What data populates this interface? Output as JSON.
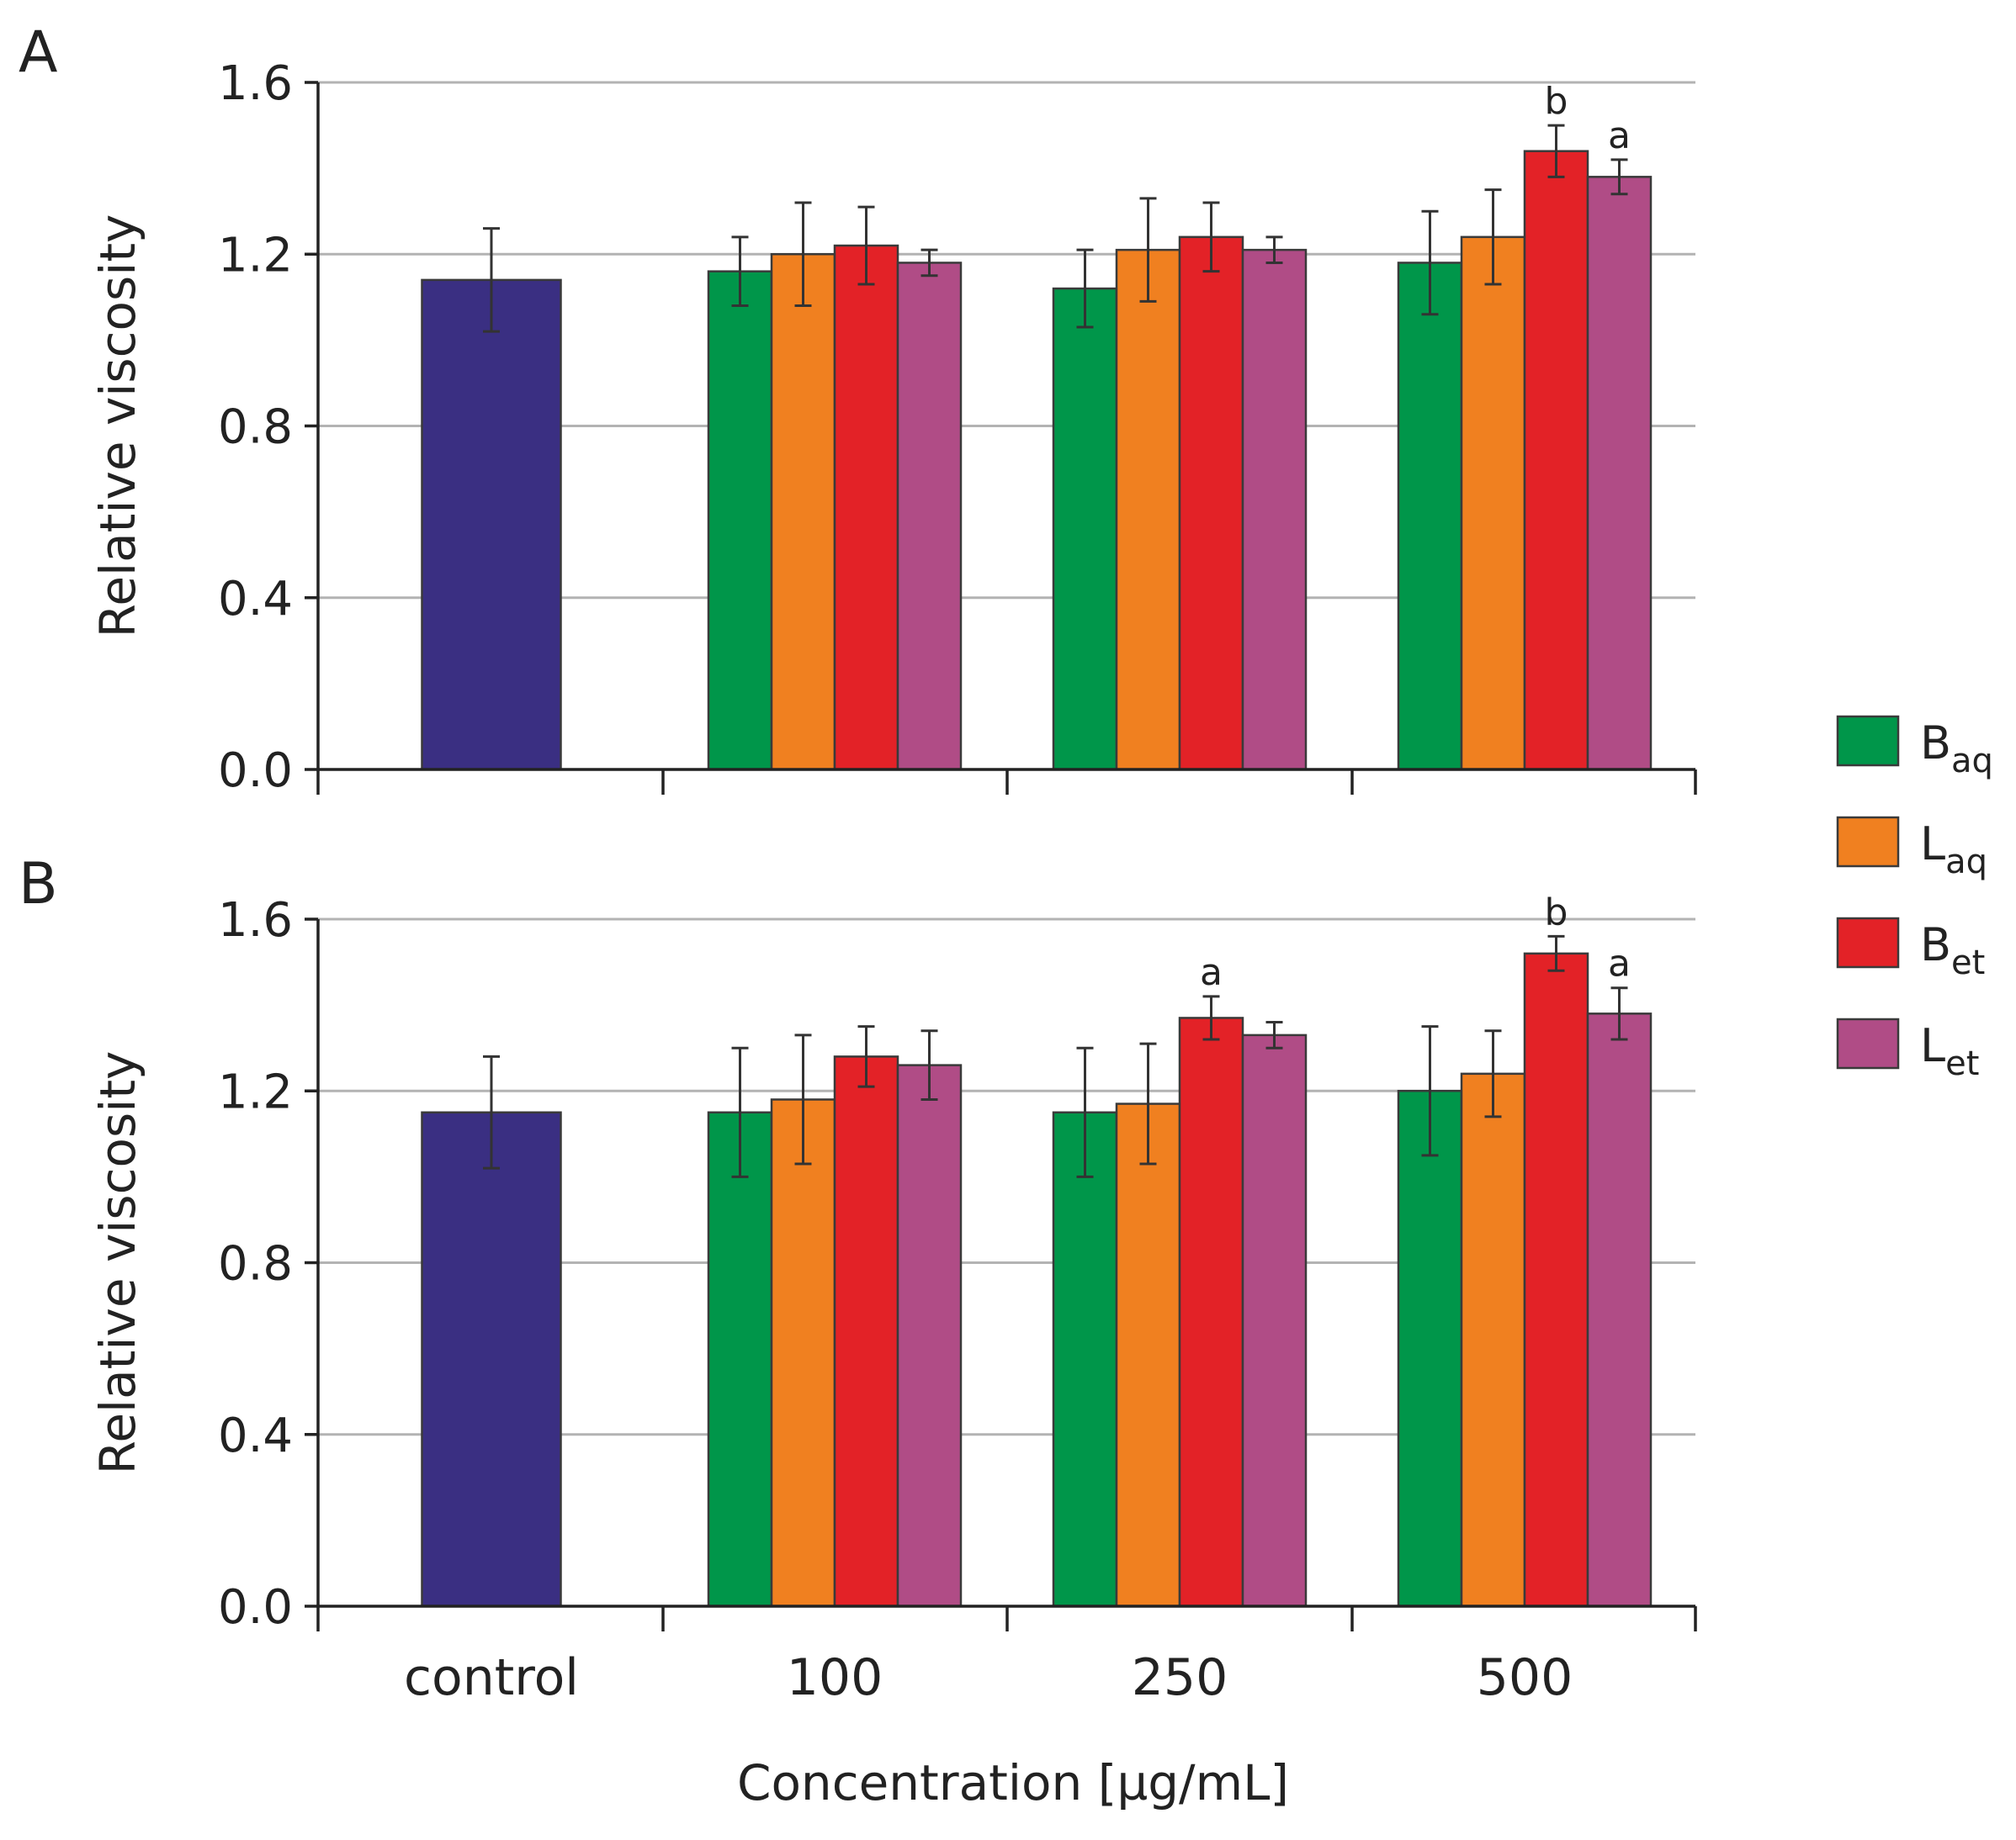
{
  "chart_data": {
    "type": "bar",
    "xlabel": "Concentration [µg/mL]",
    "ylabel": "Relative viscosity",
    "ylim": [
      0,
      1.6
    ],
    "yticks": [
      "0.0",
      "0.4",
      "0.8",
      "1.2",
      "1.6"
    ],
    "categories": [
      "control",
      "100",
      "250",
      "500"
    ],
    "control": {
      "name": "control",
      "color": "#3a2f82"
    },
    "series": [
      {
        "key": "Baq",
        "name": "B",
        "sub": "aq",
        "color": "#00964a"
      },
      {
        "key": "Laq",
        "name": "L",
        "sub": "aq",
        "color": "#f08020"
      },
      {
        "key": "Bet",
        "name": "B",
        "sub": "et",
        "color": "#e32227"
      },
      {
        "key": "Let",
        "name": "L",
        "sub": "et",
        "color": "#b04c86"
      }
    ],
    "legend": {
      "position": "right"
    },
    "panels": [
      {
        "label": "A",
        "control": {
          "value": 1.14,
          "err": 0.12
        },
        "groups": [
          {
            "category": "100",
            "bars": [
              {
                "value": 1.16,
                "err": 0.08,
                "sig": ""
              },
              {
                "value": 1.2,
                "err": 0.12,
                "sig": ""
              },
              {
                "value": 1.22,
                "err": 0.09,
                "sig": ""
              },
              {
                "value": 1.18,
                "err": 0.03,
                "sig": ""
              }
            ]
          },
          {
            "category": "250",
            "bars": [
              {
                "value": 1.12,
                "err": 0.09,
                "sig": ""
              },
              {
                "value": 1.21,
                "err": 0.12,
                "sig": ""
              },
              {
                "value": 1.24,
                "err": 0.08,
                "sig": ""
              },
              {
                "value": 1.21,
                "err": 0.03,
                "sig": ""
              }
            ]
          },
          {
            "category": "500",
            "bars": [
              {
                "value": 1.18,
                "err": 0.12,
                "sig": ""
              },
              {
                "value": 1.24,
                "err": 0.11,
                "sig": ""
              },
              {
                "value": 1.44,
                "err": 0.06,
                "sig": "b"
              },
              {
                "value": 1.38,
                "err": 0.04,
                "sig": "a"
              }
            ]
          }
        ]
      },
      {
        "label": "B",
        "control": {
          "value": 1.15,
          "err": 0.13
        },
        "groups": [
          {
            "category": "100",
            "bars": [
              {
                "value": 1.15,
                "err": 0.15,
                "sig": ""
              },
              {
                "value": 1.18,
                "err": 0.15,
                "sig": ""
              },
              {
                "value": 1.28,
                "err": 0.07,
                "sig": ""
              },
              {
                "value": 1.26,
                "err": 0.08,
                "sig": ""
              }
            ]
          },
          {
            "category": "250",
            "bars": [
              {
                "value": 1.15,
                "err": 0.15,
                "sig": ""
              },
              {
                "value": 1.17,
                "err": 0.14,
                "sig": ""
              },
              {
                "value": 1.37,
                "err": 0.05,
                "sig": "a"
              },
              {
                "value": 1.33,
                "err": 0.03,
                "sig": ""
              }
            ]
          },
          {
            "category": "500",
            "bars": [
              {
                "value": 1.2,
                "err": 0.15,
                "sig": ""
              },
              {
                "value": 1.24,
                "err": 0.1,
                "sig": ""
              },
              {
                "value": 1.52,
                "err": 0.04,
                "sig": "b"
              },
              {
                "value": 1.38,
                "err": 0.06,
                "sig": "a"
              }
            ]
          }
        ]
      }
    ]
  }
}
